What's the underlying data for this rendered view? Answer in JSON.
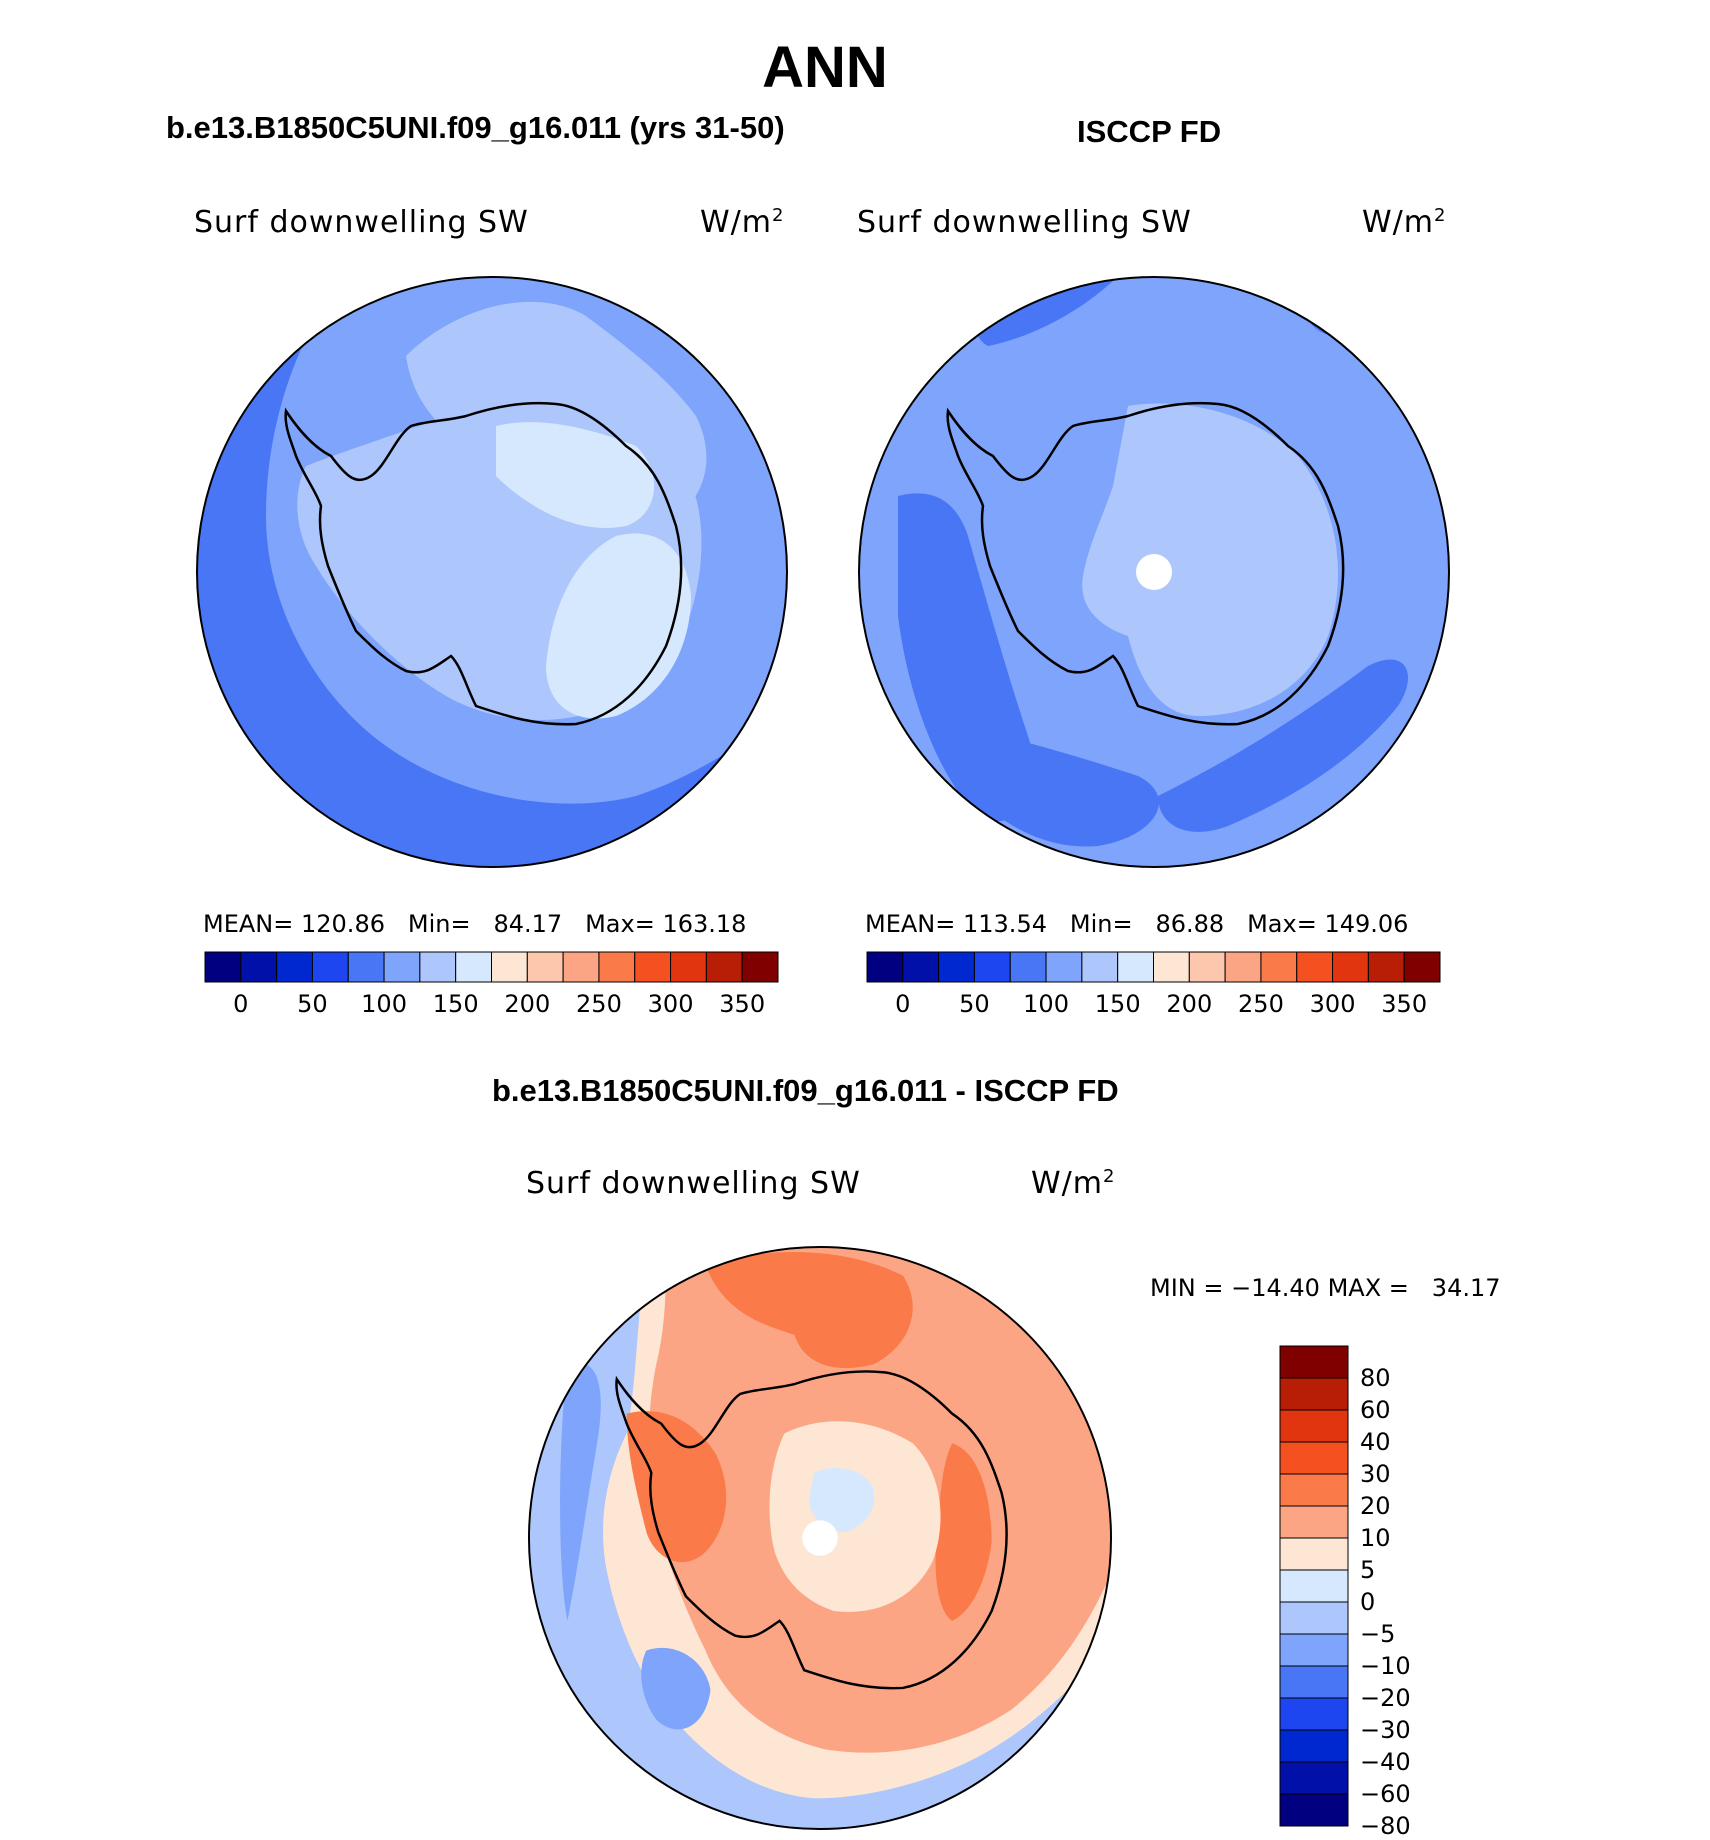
{
  "figure_title": "ANN",
  "panels": {
    "model": {
      "title": "b.e13.B1850C5UNI.f09_g16.011 (yrs 31-50)",
      "variable": "Surf downwelling SW",
      "units_base": "W/m",
      "units_exp": "2",
      "stats": {
        "mean_label": "MEAN=",
        "mean": "120.86",
        "min_label": "Min=",
        "min": "84.17",
        "max_label": "Max=",
        "max": "163.18"
      }
    },
    "obs": {
      "title": "ISCCP FD",
      "variable": "Surf downwelling SW",
      "units_base": "W/m",
      "units_exp": "2",
      "stats": {
        "mean_label": "MEAN=",
        "mean": "113.54",
        "min_label": "Min=",
        "min": "86.88",
        "max_label": "Max=",
        "max": "149.06"
      }
    },
    "diff": {
      "title": "b.e13.B1850C5UNI.f09_g16.011 - ISCCP FD",
      "variable": "Surf downwelling SW",
      "units_base": "W/m",
      "units_exp": "2",
      "stats": {
        "min_label": "MIN =",
        "min": "−14.40",
        "max_label": "MAX =",
        "max": "34.17"
      }
    }
  },
  "abs_colorbar": {
    "colors": [
      "#000080",
      "#0010a8",
      "#0028d0",
      "#1e46f0",
      "#4876f5",
      "#7ea4fb",
      "#adc6fc",
      "#d6e8fd",
      "#fde6d4",
      "#fcc7ad",
      "#fca584",
      "#fb7a49",
      "#f5501f",
      "#e0350e",
      "#b81d05",
      "#800000"
    ],
    "ticks": [
      "0",
      "50",
      "100",
      "150",
      "200",
      "250",
      "300",
      "350"
    ]
  },
  "diff_colorbar": {
    "colors": [
      "#800000",
      "#b81d05",
      "#e0350e",
      "#f5501f",
      "#fb7a49",
      "#fca584",
      "#fde6d4",
      "#d6e8fd",
      "#adc6fc",
      "#7ea4fb",
      "#4876f5",
      "#1e46f0",
      "#0028d0",
      "#0010a8",
      "#000080"
    ],
    "ticks": [
      "80",
      "60",
      "40",
      "30",
      "20",
      "10",
      "5",
      "0",
      "−5",
      "−10",
      "−20",
      "−30",
      "−40",
      "−60",
      "−80"
    ]
  }
}
